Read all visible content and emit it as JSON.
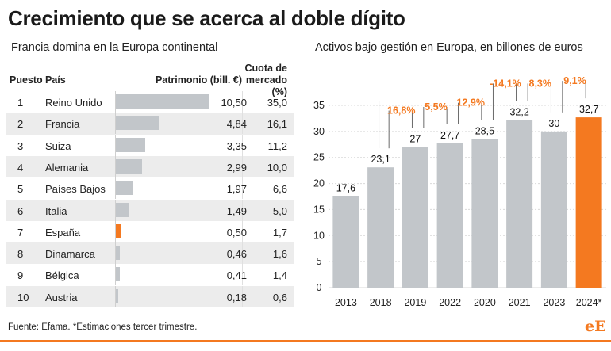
{
  "title": "Crecimiento que se acerca al doble dígito",
  "footer": "Fuente: Efama. *Estimaciones tercer trimestre.",
  "logo": {
    "part1": "e",
    "part2": "E"
  },
  "colors": {
    "highlight": "#f47920",
    "bar": "#c2c6ca",
    "shade": "#ececec"
  },
  "chart_data": [
    {
      "type": "table",
      "title": "Francia domina en la Europa continental",
      "headers": {
        "puesto": "Puesto",
        "pais": "País",
        "patrimonio": "Patrimonio (bill. €)",
        "cuota": "Cuota de mercado (%)"
      },
      "rows": [
        {
          "puesto": "1",
          "pais": "Reino Unido",
          "patrimonio": "10,50",
          "value": 10.5,
          "cuota": "35,0",
          "highlight": false
        },
        {
          "puesto": "2",
          "pais": "Francia",
          "patrimonio": "4,84",
          "value": 4.84,
          "cuota": "16,1",
          "highlight": false
        },
        {
          "puesto": "3",
          "pais": "Suiza",
          "patrimonio": "3,35",
          "value": 3.35,
          "cuota": "11,2",
          "highlight": false
        },
        {
          "puesto": "4",
          "pais": "Alemania",
          "patrimonio": "2,99",
          "value": 2.99,
          "cuota": "10,0",
          "highlight": false
        },
        {
          "puesto": "5",
          "pais": "Países Bajos",
          "patrimonio": "1,97",
          "value": 1.97,
          "cuota": "6,6",
          "highlight": false
        },
        {
          "puesto": "6",
          "pais": "Italia",
          "patrimonio": "1,49",
          "value": 1.49,
          "cuota": "5,0",
          "highlight": false
        },
        {
          "puesto": "7",
          "pais": "España",
          "patrimonio": "0,50",
          "value": 0.5,
          "cuota": "1,7",
          "highlight": true
        },
        {
          "puesto": "8",
          "pais": "Dinamarca",
          "patrimonio": "0,46",
          "value": 0.46,
          "cuota": "1,6",
          "highlight": false
        },
        {
          "puesto": "9",
          "pais": "Bélgica",
          "patrimonio": "0,41",
          "value": 0.41,
          "cuota": "1,4",
          "highlight": false
        },
        {
          "puesto": "10",
          "pais": "Austria",
          "patrimonio": "0,18",
          "value": 0.18,
          "cuota": "0,6",
          "highlight": false
        }
      ]
    },
    {
      "type": "bar",
      "title": "Activos bajo gestión en Europa, en billones de euros",
      "categories": [
        "2013",
        "2018",
        "2019",
        "2022",
        "2020",
        "2021",
        "2023",
        "2024*"
      ],
      "values": [
        17.6,
        23.1,
        27,
        27.7,
        28.5,
        32.2,
        30,
        32.7
      ],
      "value_labels": [
        "17,6",
        "23,1",
        "27",
        "27,7",
        "28,5",
        "32,2",
        "30",
        "32,7"
      ],
      "highlight_index": 7,
      "changes": [
        "",
        "16,8%",
        "5,5%",
        "12,9%",
        "-14,1%",
        "8,3%",
        "9,1%",
        ""
      ],
      "yticks": [
        0,
        5,
        10,
        15,
        20,
        25,
        30,
        35
      ],
      "ylim": [
        0,
        35
      ],
      "grid": true
    }
  ]
}
